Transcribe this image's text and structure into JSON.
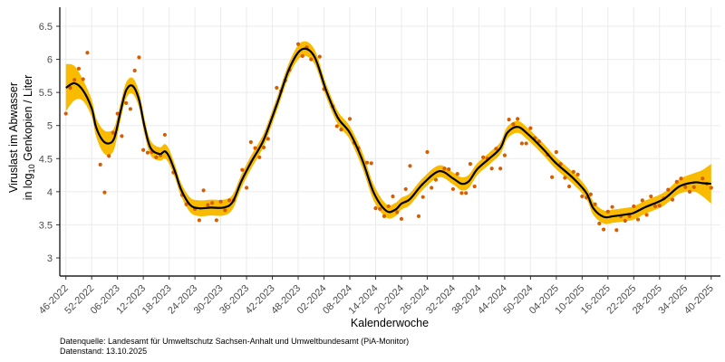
{
  "chart_data": {
    "type": "scatter",
    "title": "",
    "xlabel": "Kalenderwoche",
    "ylabel_line1": "Viruslast im Abwasser",
    "ylabel_line2_prefix": "in  log",
    "ylabel_line2_sub": "10",
    "ylabel_line2_suffix": " Genkopien / Liter",
    "ylim": [
      2.7,
      6.75
    ],
    "yticks": [
      3,
      3.5,
      4,
      4.5,
      5,
      5.5,
      6,
      6.5
    ],
    "ytick_labels": [
      "3",
      "3.5",
      "4",
      "4.5",
      "5",
      "5.5",
      "6",
      "6.5"
    ],
    "x_unit": "weeks since 46-2022",
    "xlim": [
      -1.5,
      151.5
    ],
    "xtick_step_weeks": 6,
    "xtick_labels": [
      "46-2022",
      "52-2022",
      "06-2023",
      "12-2023",
      "18-2023",
      "24-2023",
      "30-2023",
      "36-2023",
      "42-2023",
      "48-2023",
      "02-2024",
      "08-2024",
      "14-2024",
      "20-2024",
      "26-2024",
      "32-2024",
      "38-2024",
      "44-2024",
      "50-2024",
      "04-2025",
      "10-2025",
      "16-2025",
      "22-2025",
      "28-2025",
      "34-2025",
      "40-2025"
    ],
    "grid": true,
    "colors": {
      "points": "#d55e00",
      "band": "#f8bb00",
      "line": "#000000",
      "grid": "#ebebeb"
    },
    "points": [
      [
        0,
        5.18
      ],
      [
        1,
        5.57
      ],
      [
        2,
        5.69
      ],
      [
        3,
        5.86
      ],
      [
        4,
        5.7
      ],
      [
        5,
        6.1
      ],
      [
        8,
        4.41
      ],
      [
        9,
        3.99
      ],
      [
        10,
        4.54
      ],
      [
        11,
        4.89
      ],
      [
        12,
        5.18
      ],
      [
        13,
        4.84
      ],
      [
        14,
        5.34
      ],
      [
        15,
        5.25
      ],
      [
        16,
        5.83
      ],
      [
        17,
        6.03
      ],
      [
        18,
        4.63
      ],
      [
        19,
        4.59
      ],
      [
        20,
        4.6
      ],
      [
        21,
        4.52
      ],
      [
        22,
        4.55
      ],
      [
        23,
        4.86
      ],
      [
        25,
        4.29
      ],
      [
        27,
        3.95
      ],
      [
        28,
        3.81
      ],
      [
        30,
        3.74
      ],
      [
        31,
        3.57
      ],
      [
        32,
        4.02
      ],
      [
        33,
        3.8
      ],
      [
        34,
        3.83
      ],
      [
        35,
        3.57
      ],
      [
        36,
        3.85
      ],
      [
        37,
        3.72
      ],
      [
        38,
        3.87
      ],
      [
        39,
        3.87
      ],
      [
        41,
        4.33
      ],
      [
        42,
        4.06
      ],
      [
        43,
        4.75
      ],
      [
        44,
        4.66
      ],
      [
        45,
        4.52
      ],
      [
        46,
        4.67
      ],
      [
        47,
        4.8
      ],
      [
        49,
        5.57
      ],
      [
        50,
        5.52
      ],
      [
        51,
        5.68
      ],
      [
        52,
        5.84
      ],
      [
        54,
        6.23
      ],
      [
        55,
        6.05
      ],
      [
        56,
        6.18
      ],
      [
        57,
        6.0
      ],
      [
        59,
        6.04
      ],
      [
        60,
        5.55
      ],
      [
        62,
        5.29
      ],
      [
        63,
        4.99
      ],
      [
        64,
        4.94
      ],
      [
        66,
        5.1
      ],
      [
        67,
        4.74
      ],
      [
        68,
        4.66
      ],
      [
        70,
        4.44
      ],
      [
        71,
        4.43
      ],
      [
        72,
        3.75
      ],
      [
        73,
        3.74
      ],
      [
        74,
        3.63
      ],
      [
        75,
        3.78
      ],
      [
        76,
        3.93
      ],
      [
        77,
        3.69
      ],
      [
        78,
        3.59
      ],
      [
        79,
        4.04
      ],
      [
        80,
        4.39
      ],
      [
        82,
        3.63
      ],
      [
        83,
        3.92
      ],
      [
        84,
        4.6
      ],
      [
        85,
        4.06
      ],
      [
        86,
        4.18
      ],
      [
        88,
        4.35
      ],
      [
        89,
        4.34
      ],
      [
        90,
        4.04
      ],
      [
        91,
        4.27
      ],
      [
        92,
        3.98
      ],
      [
        93,
        3.98
      ],
      [
        94,
        4.42
      ],
      [
        95,
        4.08
      ],
      [
        97,
        4.52
      ],
      [
        98,
        4.5
      ],
      [
        99,
        4.35
      ],
      [
        100,
        4.65
      ],
      [
        101,
        4.35
      ],
      [
        102,
        4.55
      ],
      [
        103,
        5.09
      ],
      [
        104,
        5.02
      ],
      [
        105,
        5.1
      ],
      [
        106,
        4.73
      ],
      [
        107,
        4.73
      ],
      [
        108,
        4.96
      ],
      [
        109,
        4.81
      ],
      [
        110,
        4.76
      ],
      [
        112,
        4.56
      ],
      [
        113,
        4.22
      ],
      [
        114,
        4.6
      ],
      [
        115,
        4.42
      ],
      [
        116,
        4.21
      ],
      [
        117,
        4.08
      ],
      [
        118,
        4.3
      ],
      [
        119,
        4.26
      ],
      [
        120,
        3.93
      ],
      [
        121,
        3.91
      ],
      [
        122,
        3.96
      ],
      [
        123,
        3.81
      ],
      [
        124,
        3.52
      ],
      [
        125,
        3.43
      ],
      [
        126,
        3.7
      ],
      [
        127,
        3.77
      ],
      [
        128,
        3.42
      ],
      [
        129,
        3.63
      ],
      [
        130,
        3.56
      ],
      [
        131,
        3.63
      ],
      [
        132,
        3.78
      ],
      [
        133,
        3.58
      ],
      [
        134,
        3.87
      ],
      [
        135,
        3.65
      ],
      [
        136,
        3.93
      ],
      [
        137,
        3.78
      ],
      [
        138,
        3.79
      ],
      [
        139,
        3.9
      ],
      [
        140,
        4.03
      ],
      [
        141,
        3.88
      ],
      [
        142,
        4.15
      ],
      [
        143,
        4.2
      ],
      [
        144,
        4.07
      ],
      [
        145,
        4.0
      ],
      [
        146,
        4.07
      ],
      [
        148,
        4.2
      ],
      [
        149,
        4.12
      ],
      [
        150,
        4.06
      ]
    ],
    "smooth": [
      [
        0,
        5.57,
        0.36
      ],
      [
        2,
        5.64,
        0.26
      ],
      [
        4,
        5.53,
        0.16
      ],
      [
        6,
        5.26,
        0.13
      ],
      [
        7,
        4.98,
        0.14
      ],
      [
        8.5,
        4.78,
        0.17
      ],
      [
        10,
        4.73,
        0.18
      ],
      [
        11.3,
        4.82,
        0.16
      ],
      [
        12.7,
        5.21,
        0.13
      ],
      [
        14,
        5.53,
        0.12
      ],
      [
        15.5,
        5.6,
        0.12
      ],
      [
        17,
        5.39,
        0.12
      ],
      [
        18.3,
        4.98,
        0.12
      ],
      [
        19.7,
        4.66,
        0.11
      ],
      [
        21.8,
        4.57,
        0.1
      ],
      [
        23,
        4.61,
        0.11
      ],
      [
        24,
        4.53,
        0.11
      ],
      [
        25.4,
        4.3,
        0.1
      ],
      [
        26.8,
        4.03,
        0.1
      ],
      [
        28.9,
        3.8,
        0.11
      ],
      [
        31,
        3.75,
        0.12
      ],
      [
        33.8,
        3.76,
        0.12
      ],
      [
        36.6,
        3.76,
        0.12
      ],
      [
        38.7,
        3.84,
        0.11
      ],
      [
        40.8,
        4.16,
        0.1
      ],
      [
        43,
        4.44,
        0.1
      ],
      [
        45,
        4.66,
        0.1
      ],
      [
        46.4,
        4.85,
        0.1
      ],
      [
        49.2,
        5.35,
        0.1
      ],
      [
        52,
        5.87,
        0.1
      ],
      [
        54.8,
        6.15,
        0.11
      ],
      [
        57.7,
        6.05,
        0.11
      ],
      [
        60.5,
        5.53,
        0.1
      ],
      [
        63.2,
        5.12,
        0.1
      ],
      [
        66,
        4.89,
        0.1
      ],
      [
        68.9,
        4.48,
        0.12
      ],
      [
        71.6,
        3.98,
        0.12
      ],
      [
        74.5,
        3.71,
        0.1
      ],
      [
        76.6,
        3.73,
        0.1
      ],
      [
        78,
        3.82,
        0.09
      ],
      [
        80,
        3.89,
        0.09
      ],
      [
        83,
        4.12,
        0.09
      ],
      [
        86.8,
        4.31,
        0.09
      ],
      [
        90,
        4.2,
        0.09
      ],
      [
        92,
        4.12,
        0.1
      ],
      [
        93.7,
        4.16,
        0.1
      ],
      [
        95.6,
        4.34,
        0.09
      ],
      [
        98.4,
        4.5,
        0.09
      ],
      [
        101,
        4.66,
        0.09
      ],
      [
        102.6,
        4.89,
        0.09
      ],
      [
        105,
        4.98,
        0.09
      ],
      [
        107.4,
        4.87,
        0.09
      ],
      [
        111,
        4.64,
        0.09
      ],
      [
        113.8,
        4.44,
        0.09
      ],
      [
        118,
        4.2,
        0.09
      ],
      [
        121,
        3.98,
        0.09
      ],
      [
        122.6,
        3.75,
        0.1
      ],
      [
        125,
        3.62,
        0.1
      ],
      [
        127.2,
        3.63,
        0.1
      ],
      [
        130.6,
        3.66,
        0.1
      ],
      [
        132,
        3.68,
        0.1
      ],
      [
        134.8,
        3.77,
        0.1
      ],
      [
        139,
        3.89,
        0.1
      ],
      [
        142.6,
        4.08,
        0.11
      ],
      [
        146,
        4.14,
        0.14
      ],
      [
        148,
        4.13,
        0.2
      ],
      [
        150,
        4.12,
        0.3
      ]
    ]
  },
  "caption": {
    "line1": "Datenquelle: Landesamt für Umweltschutz Sachsen-Anhalt und Umweltbundesamt (PiA-Monitor)",
    "line2": "Datenstand: 13.10.2025"
  }
}
